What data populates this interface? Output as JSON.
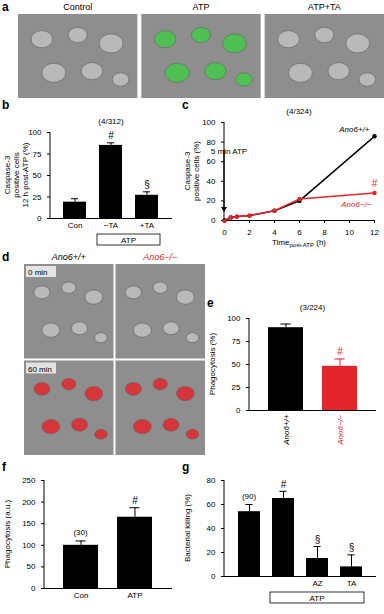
{
  "image_panels": [
    {
      "panel": "a",
      "columns": [
        "Control",
        "ATP",
        "ATP+TA"
      ]
    },
    {
      "panel": "d",
      "columns": [
        "Ano6+/+",
        "Ano6−/−"
      ],
      "column_colors": [
        "#000000",
        "#e3262c"
      ],
      "rows": [
        "0 min",
        "60 min"
      ]
    }
  ],
  "chart_data": [
    {
      "panel": "b",
      "type": "bar",
      "categories": [
        "Con",
        "−TA",
        "+TA"
      ],
      "group_label": {
        "text": "ATP",
        "categories": [
          1,
          2
        ]
      },
      "values": [
        19,
        85,
        27
      ],
      "errors": [
        4,
        3,
        4
      ],
      "colors": [
        "#000000",
        "#000000",
        "#000000"
      ],
      "significance": [
        null,
        "#",
        "§"
      ],
      "n_label": "(4/312)",
      "ylabel": [
        "Caspase-3",
        "positive cells",
        "12 h post-ATP (%)"
      ],
      "ylim": [
        0,
        100
      ],
      "yticks": [
        0,
        25,
        50,
        75,
        100
      ]
    },
    {
      "panel": "c",
      "type": "line",
      "n_label": "(4/324)",
      "annotation": {
        "text": "5 min ATP",
        "x": 0
      },
      "xlabel": "Time",
      "xlabel_sub": "post-ATP",
      "xlabel_suffix": "(h)",
      "ylabel": [
        "Caspase-3",
        "positive cells (%)"
      ],
      "xlim": [
        0,
        12
      ],
      "xticks": [
        0,
        2,
        4,
        6,
        8,
        10,
        12
      ],
      "ylim": [
        0,
        100
      ],
      "yticks": [
        0,
        20,
        40,
        60,
        80,
        100
      ],
      "x": [
        0,
        0.5,
        1,
        2,
        4,
        6,
        12
      ],
      "series": [
        {
          "name": "Ano6+/+",
          "color": "#000000",
          "marker": "circle",
          "values": [
            0,
            3,
            4,
            5,
            10,
            20,
            86
          ]
        },
        {
          "name": "Ano6−/−",
          "color": "#e3262c",
          "marker": "circle",
          "values": [
            0,
            3,
            4,
            5,
            10,
            22,
            28
          ],
          "significance": "#"
        }
      ]
    },
    {
      "panel": "e",
      "type": "bar",
      "categories": [
        "Ano6+/+",
        "Ano6−/−"
      ],
      "values": [
        90,
        48
      ],
      "errors": [
        4,
        8
      ],
      "colors": [
        "#000000",
        "#e3262c"
      ],
      "significance": [
        null,
        "#"
      ],
      "n_label": "(3/224)",
      "ylabel": [
        "Phagocytosis (%)"
      ],
      "ylim": [
        0,
        100
      ],
      "yticks": [
        0,
        25,
        50,
        75,
        100
      ]
    },
    {
      "panel": "f",
      "type": "bar",
      "categories": [
        "Con",
        "ATP"
      ],
      "values": [
        100,
        165
      ],
      "errors": [
        10,
        22
      ],
      "colors": [
        "#000000",
        "#000000"
      ],
      "significance": [
        null,
        "#"
      ],
      "n_label": "(30)",
      "ylabel": [
        "Phagocytosis (a.u.)"
      ],
      "ylim": [
        0,
        250
      ],
      "yticks": [
        0,
        50,
        100,
        150,
        200,
        250
      ]
    },
    {
      "panel": "g",
      "type": "bar",
      "categories": [
        null,
        null,
        "AZ",
        "TA"
      ],
      "group_label": {
        "text": "ATP",
        "categories": [
          1,
          3
        ]
      },
      "values": [
        54,
        65,
        15,
        8
      ],
      "errors": [
        6,
        6,
        10,
        10
      ],
      "colors": [
        "#000000",
        "#000000",
        "#000000",
        "#000000"
      ],
      "significance": [
        null,
        "#",
        "§",
        "§"
      ],
      "n_label": "(90)",
      "ylabel": [
        "Bacterial killing (%)"
      ],
      "ylim": [
        0,
        80
      ],
      "yticks": [
        0,
        20,
        40,
        60,
        80
      ]
    }
  ]
}
